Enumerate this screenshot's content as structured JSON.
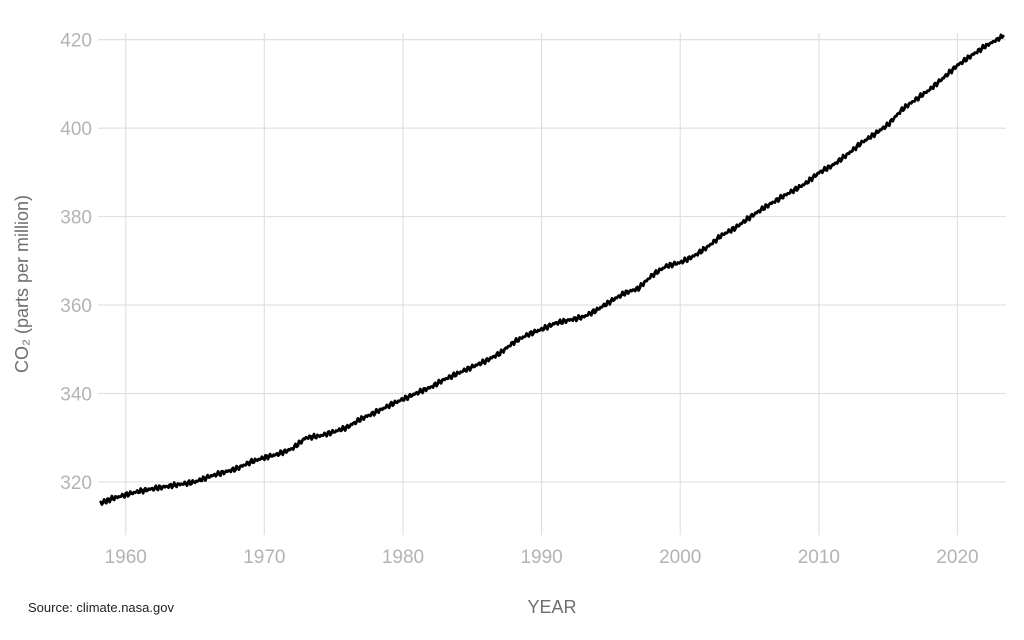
{
  "chart_data": {
    "type": "line",
    "title": "",
    "xlabel": "YEAR",
    "ylabel": "CO₂ (parts per million)",
    "source": "Source: climate.nasa.gov",
    "xlim": [
      1958,
      2023.5
    ],
    "ylim": [
      308,
      421.5
    ],
    "x_ticks": [
      1960,
      1970,
      1980,
      1990,
      2000,
      2010,
      2020
    ],
    "y_ticks": [
      320,
      340,
      360,
      380,
      400,
      420
    ],
    "grid": true,
    "legend": "none",
    "series": [
      {
        "color": "#000000",
        "x": [
          1958.2,
          1959,
          1960,
          1961,
          1962,
          1963,
          1964,
          1965,
          1966,
          1967,
          1968,
          1969,
          1970,
          1971,
          1972,
          1973,
          1974,
          1975,
          1976,
          1977,
          1978,
          1979,
          1980,
          1981,
          1982,
          1983,
          1984,
          1985,
          1986,
          1987,
          1988,
          1989,
          1990,
          1991,
          1992,
          1993,
          1994,
          1995,
          1996,
          1997,
          1998,
          1999,
          2000,
          2001,
          2002,
          2003,
          2004,
          2005,
          2006,
          2007,
          2008,
          2009,
          2010,
          2011,
          2012,
          2013,
          2014,
          2015,
          2016,
          2017,
          2018,
          2019,
          2020,
          2021,
          2022,
          2023.3
        ],
        "y": [
          315.2,
          316.2,
          317.1,
          317.9,
          318.5,
          319.0,
          319.5,
          320.0,
          321.2,
          322.1,
          323.0,
          324.5,
          325.5,
          326.3,
          327.5,
          330.0,
          330.4,
          331.3,
          332.4,
          334.3,
          335.7,
          337.3,
          338.7,
          340.1,
          341.4,
          343.2,
          344.6,
          346.0,
          347.4,
          349.1,
          351.6,
          353.3,
          354.5,
          355.9,
          356.6,
          357.3,
          358.9,
          360.9,
          362.7,
          363.8,
          366.8,
          368.8,
          369.6,
          371.1,
          373.2,
          375.8,
          377.5,
          379.8,
          381.9,
          383.8,
          385.6,
          387.4,
          389.9,
          391.6,
          393.9,
          396.5,
          398.6,
          400.8,
          404.2,
          406.5,
          408.7,
          411.4,
          414.2,
          416.4,
          418.5,
          420.8
        ]
      }
    ]
  }
}
